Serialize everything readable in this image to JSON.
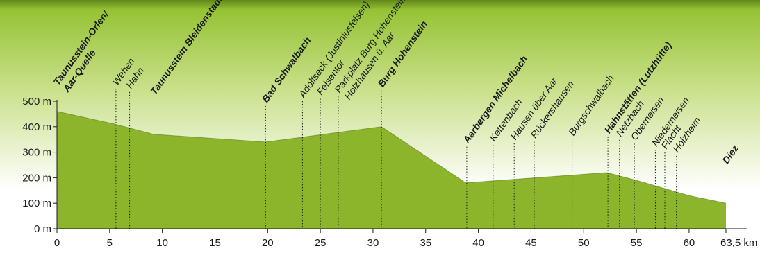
{
  "chart_data": {
    "type": "area",
    "title": "",
    "xlabel": "",
    "ylabel": "",
    "x_unit": "km",
    "y_unit": "m",
    "xlim": [
      0,
      63.5
    ],
    "ylim": [
      0,
      500
    ],
    "x_ticks": [
      {
        "value": 0,
        "label": "0"
      },
      {
        "value": 5,
        "label": "5"
      },
      {
        "value": 10,
        "label": "10"
      },
      {
        "value": 15,
        "label": "15"
      },
      {
        "value": 20,
        "label": "20"
      },
      {
        "value": 25,
        "label": "25"
      },
      {
        "value": 30,
        "label": "30"
      },
      {
        "value": 35,
        "label": "35"
      },
      {
        "value": 40,
        "label": "40"
      },
      {
        "value": 45,
        "label": "45"
      },
      {
        "value": 50,
        "label": "50"
      },
      {
        "value": 55,
        "label": "55"
      },
      {
        "value": 60,
        "label": "60"
      },
      {
        "value": 63.5,
        "label": "63,5 km"
      }
    ],
    "y_ticks": [
      {
        "value": 0,
        "label": "0 m"
      },
      {
        "value": 100,
        "label": "100 m"
      },
      {
        "value": 200,
        "label": "200 m"
      },
      {
        "value": 300,
        "label": "300 m"
      },
      {
        "value": 400,
        "label": "400 m"
      },
      {
        "value": 500,
        "label": "500 m"
      }
    ],
    "profile": [
      {
        "x": 0,
        "y": 460
      },
      {
        "x": 5.5,
        "y": 410
      },
      {
        "x": 9.2,
        "y": 370
      },
      {
        "x": 19.8,
        "y": 340
      },
      {
        "x": 30.8,
        "y": 400
      },
      {
        "x": 38.8,
        "y": 180
      },
      {
        "x": 48.8,
        "y": 210
      },
      {
        "x": 52.2,
        "y": 220
      },
      {
        "x": 55,
        "y": 190
      },
      {
        "x": 60,
        "y": 130
      },
      {
        "x": 63.5,
        "y": 100
      }
    ],
    "places": [
      {
        "x": 0,
        "lines": [
          "Taunusstein-Orlen/",
          "Aar-Quelle"
        ],
        "major": true
      },
      {
        "x": 5.6,
        "lines": [
          "Wehen"
        ],
        "major": false
      },
      {
        "x": 6.9,
        "lines": [
          "Hahn"
        ],
        "major": false
      },
      {
        "x": 9.2,
        "lines": [
          "Taunusstein Bleidenstadt"
        ],
        "major": true
      },
      {
        "x": 19.8,
        "lines": [
          "Bad Schwalbach"
        ],
        "major": true
      },
      {
        "x": 23.3,
        "lines": [
          "Adolfseck (Justiniusfelsen)"
        ],
        "major": false
      },
      {
        "x": 25,
        "lines": [
          "Felsentor"
        ],
        "major": false
      },
      {
        "x": 26.7,
        "lines": [
          "Parkplatz Burg Hohenstein/",
          "Holzhausen ü. Aar"
        ],
        "major": false
      },
      {
        "x": 30.8,
        "lines": [
          "Burg Hohenstein"
        ],
        "major": true
      },
      {
        "x": 38.9,
        "lines": [
          "Aarbergen Michelbach"
        ],
        "major": true
      },
      {
        "x": 41.4,
        "lines": [
          "Kettenbach"
        ],
        "major": false
      },
      {
        "x": 43.4,
        "lines": [
          "Hausen über Aar"
        ],
        "major": false
      },
      {
        "x": 45.3,
        "lines": [
          "Rückershausen"
        ],
        "major": false
      },
      {
        "x": 48.9,
        "lines": [
          "Burgschwalbach"
        ],
        "major": false
      },
      {
        "x": 52.3,
        "lines": [
          "Hahnstätten (Lutzhütte)"
        ],
        "major": true
      },
      {
        "x": 53.4,
        "lines": [
          "Netzbach"
        ],
        "major": false
      },
      {
        "x": 54.8,
        "lines": [
          "Oberneisen"
        ],
        "major": false
      },
      {
        "x": 56.8,
        "lines": [
          "Niederneisen"
        ],
        "major": false
      },
      {
        "x": 57.7,
        "lines": [
          "Flacht"
        ],
        "major": false
      },
      {
        "x": 58.8,
        "lines": [
          "Holzheim"
        ],
        "major": false
      },
      {
        "x": 63.5,
        "lines": [
          "Diez"
        ],
        "major": true
      }
    ],
    "colors": {
      "area_fill": "#8db52b",
      "area_edge": "#4a6b12",
      "background_top": "#8fbf2a",
      "background_bottom": "#ffffff",
      "text": "#1a1a1a",
      "axis": "#1a1a1a",
      "dotted_markers": "#1a1a1a"
    },
    "grid": false,
    "legend": "none"
  }
}
